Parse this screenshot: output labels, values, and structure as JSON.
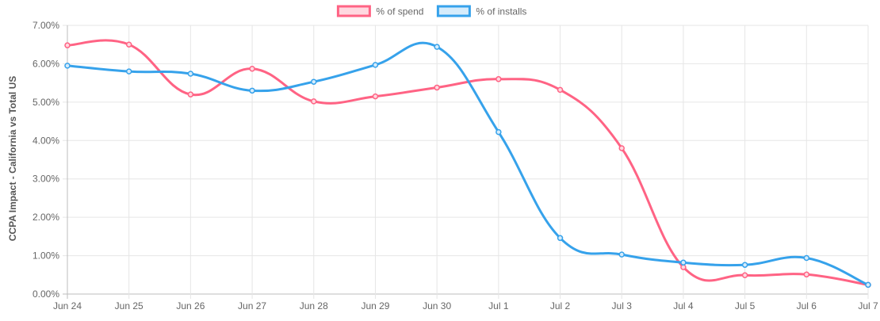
{
  "chart_data": {
    "type": "line",
    "title": "",
    "xlabel": "",
    "ylabel": "CCPA Impact - California vs Total US",
    "categories": [
      "Jun 24",
      "Jun 25",
      "Jun 26",
      "Jun 27",
      "Jun 28",
      "Jun 29",
      "Jun 30",
      "Jul 1",
      "Jul 2",
      "Jul 3",
      "Jul 4",
      "Jul 5",
      "Jul 6",
      "Jul 7"
    ],
    "yticks": [
      "0.00%",
      "1.00%",
      "2.00%",
      "3.00%",
      "4.00%",
      "5.00%",
      "6.00%",
      "7.00%"
    ],
    "ylim": [
      0,
      7
    ],
    "grid": true,
    "legend_position": "top-center",
    "series": [
      {
        "name": "% of spend",
        "color": "#ff6384",
        "fill": "#ffd8e0",
        "values": [
          6.48,
          6.5,
          5.2,
          5.87,
          5.02,
          5.15,
          5.38,
          5.6,
          5.32,
          3.8,
          0.7,
          0.49,
          0.51,
          0.24
        ]
      },
      {
        "name": "% of installs",
        "color": "#36a2eb",
        "fill": "#d6ecfb",
        "values": [
          5.95,
          5.8,
          5.74,
          5.3,
          5.53,
          5.97,
          6.44,
          4.22,
          1.46,
          1.03,
          0.82,
          0.76,
          0.94,
          0.24
        ]
      }
    ]
  }
}
